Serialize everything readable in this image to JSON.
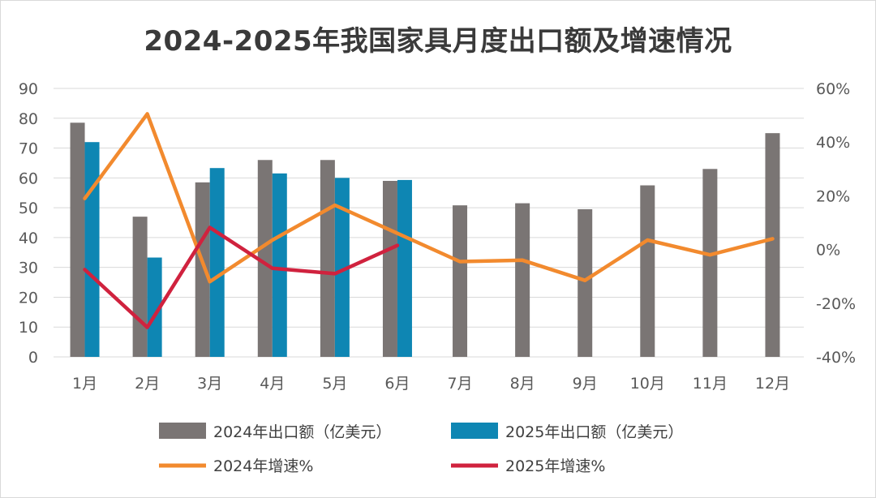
{
  "title": "2024-2025年我国家具月度出口额及增速情况",
  "colors": {
    "bar2024": "#7a7574",
    "bar2025": "#0e86b3",
    "line2024": "#f28a2e",
    "line2025": "#d0223e",
    "grid": "#d9d9d9",
    "text": "#595959"
  },
  "chart_data": {
    "type": "bar+line",
    "title": "2024-2025年我国家具月度出口额及增速情况",
    "categories": [
      "1月",
      "2月",
      "3月",
      "4月",
      "5月",
      "6月",
      "7月",
      "8月",
      "9月",
      "10月",
      "11月",
      "12月"
    ],
    "left_axis": {
      "ylim": [
        0,
        90
      ],
      "ticks": [
        "0",
        "10",
        "20",
        "30",
        "40",
        "50",
        "60",
        "70",
        "80",
        "90"
      ]
    },
    "right_axis": {
      "ylim": [
        -40,
        60
      ],
      "ticks": [
        "-40%",
        "-20%",
        "0%",
        "20%",
        "40%",
        "60%"
      ]
    },
    "grid": true,
    "legend_position": "bottom",
    "series": [
      {
        "name": "2024年出口额（亿美元）",
        "type": "bar",
        "axis": "left",
        "values": [
          78.5,
          47,
          58.5,
          66,
          66,
          59,
          50.8,
          51.5,
          49.5,
          57.5,
          63,
          75
        ]
      },
      {
        "name": "2025年出口额（亿美元）",
        "type": "bar",
        "axis": "left",
        "values": [
          72,
          33.3,
          63.3,
          61.5,
          60,
          59.3,
          null,
          null,
          null,
          null,
          null,
          null
        ]
      },
      {
        "name": "2024年增速%",
        "type": "line",
        "axis": "right",
        "values": [
          19,
          50.5,
          -12,
          3.5,
          16.5,
          6,
          -4.5,
          -4,
          -11.5,
          3.5,
          -2,
          4
        ]
      },
      {
        "name": "2025年增速%",
        "type": "line",
        "axis": "right",
        "values": [
          -7.5,
          -29,
          8.2,
          -7,
          -9,
          1.5,
          null,
          null,
          null,
          null,
          null,
          null
        ]
      }
    ]
  }
}
